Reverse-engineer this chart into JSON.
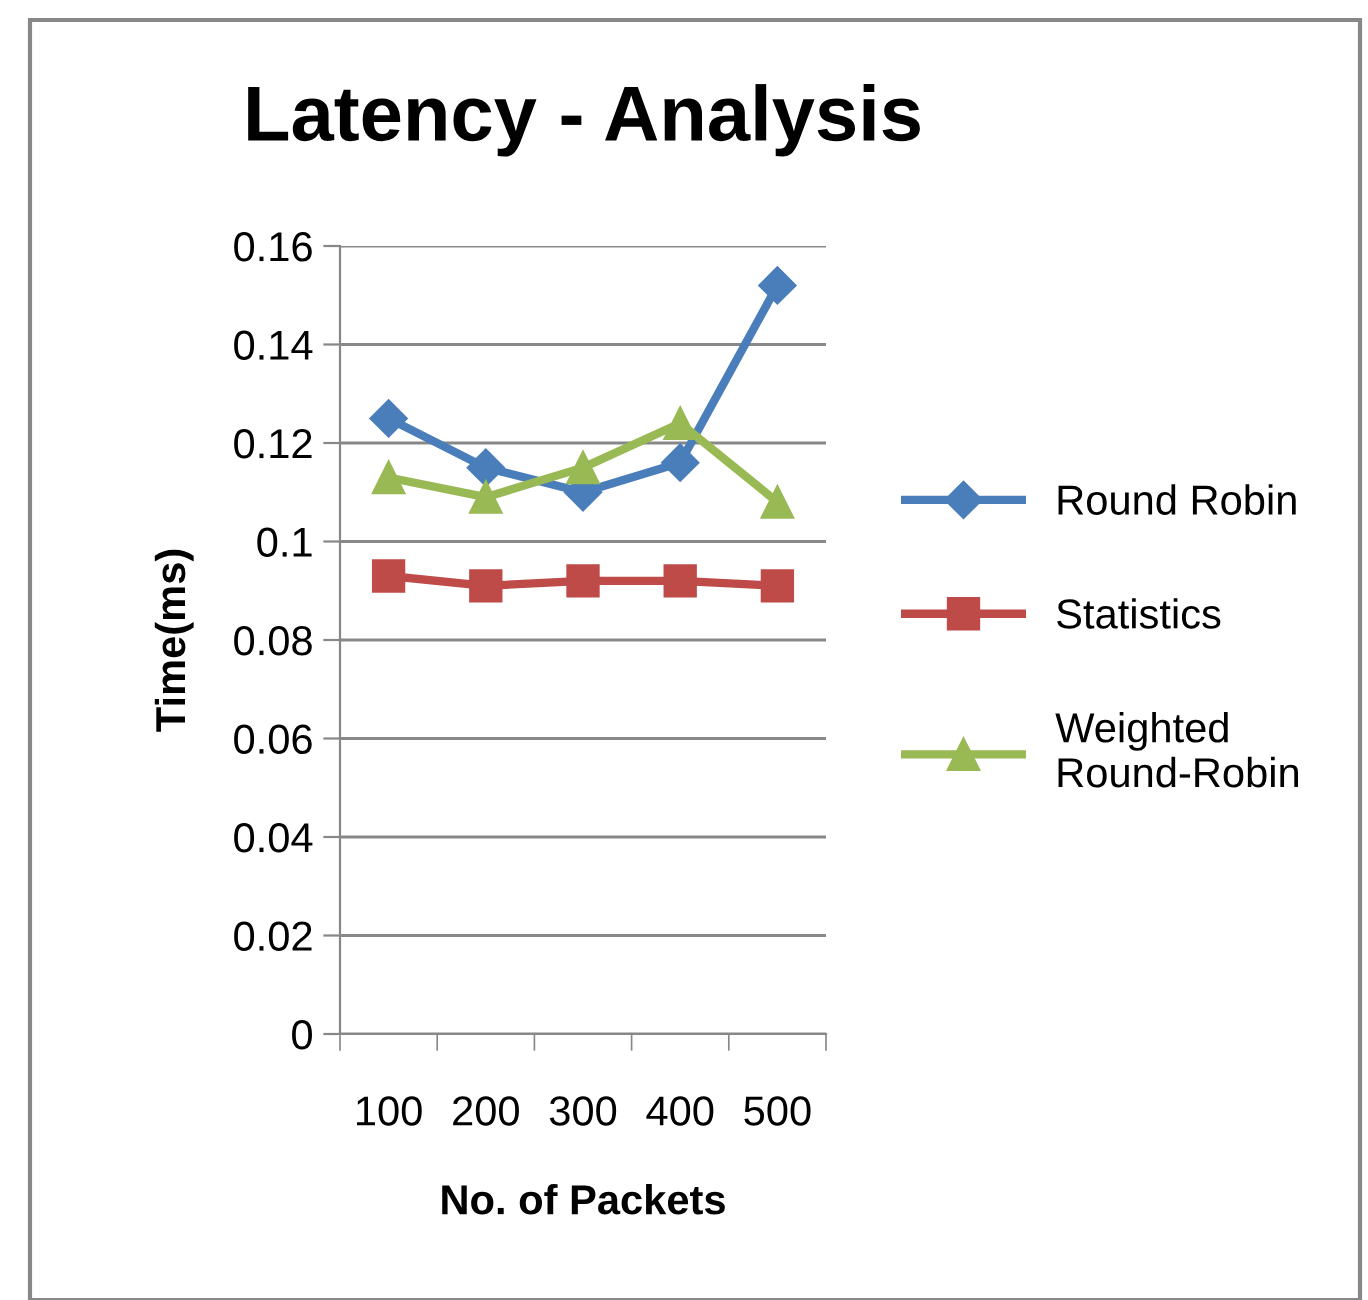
{
  "chart_data": {
    "type": "line",
    "title": "Latency - Analysis",
    "xlabel": "No. of Packets",
    "ylabel": "Time(ms)",
    "categories": [
      "100",
      "200",
      "300",
      "400",
      "500"
    ],
    "series": [
      {
        "name": "Round Robin",
        "color": "#4a7ebb",
        "marker": "diamond",
        "values": [
          0.125,
          0.115,
          0.11,
          0.116,
          0.152
        ]
      },
      {
        "name": "Statistics",
        "color": "#be4b48",
        "marker": "square",
        "values": [
          0.093,
          0.091,
          0.092,
          0.092,
          0.091
        ]
      },
      {
        "name": "Weighted\nRound-Robin",
        "color": "#98b954",
        "marker": "triangle",
        "values": [
          0.113,
          0.109,
          0.115,
          0.124,
          0.108
        ]
      }
    ],
    "ylim": [
      0,
      0.16
    ],
    "yticks": [
      0,
      0.02,
      0.04,
      0.06,
      0.08,
      0.1,
      0.12,
      0.14,
      0.16
    ],
    "grid": "y",
    "legend": "right",
    "line_style": "solid"
  }
}
